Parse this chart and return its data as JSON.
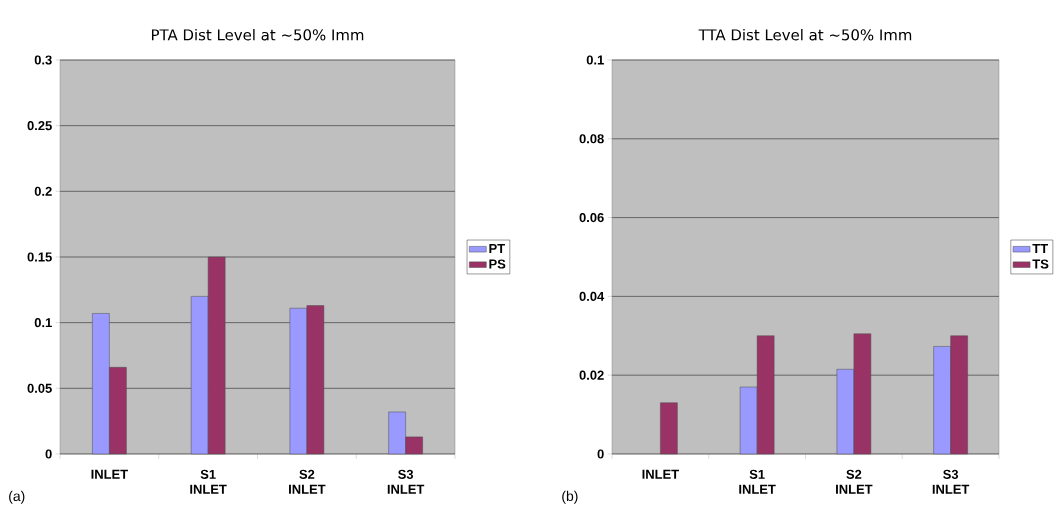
{
  "chart_data": [
    {
      "type": "bar",
      "title": "PTA Dist Level at ~50% Imm",
      "categories": [
        "INLET",
        "S1 INLET",
        "S2 INLET",
        "S3 INLET"
      ],
      "series": [
        {
          "name": "PT",
          "color": "#9999ff",
          "values": [
            0.107,
            0.12,
            0.111,
            0.032
          ]
        },
        {
          "name": "PS",
          "color": "#993366",
          "values": [
            0.066,
            0.15,
            0.113,
            0.013
          ]
        }
      ],
      "ylim": [
        0,
        0.3
      ],
      "yticks": [
        0,
        0.05,
        0.1,
        0.15,
        0.2,
        0.25,
        0.3
      ],
      "grid": "y",
      "legend": "right",
      "annotations": [
        "(a)"
      ]
    },
    {
      "type": "bar",
      "title": "TTA Dist Level at ~50% Imm",
      "categories": [
        "INLET",
        "S1 INLET",
        "S2 INLET",
        "S3 INLET"
      ],
      "series": [
        {
          "name": "TT",
          "color": "#9999ff",
          "values": [
            null,
            0.017,
            0.0215,
            0.0273
          ]
        },
        {
          "name": "TS",
          "color": "#993366",
          "values": [
            0.013,
            0.03,
            0.0305,
            0.03
          ]
        }
      ],
      "ylim": [
        0,
        0.1
      ],
      "yticks": [
        0,
        0.02,
        0.04,
        0.06,
        0.08,
        0.1
      ],
      "grid": "y",
      "legend": "right",
      "annotations": [
        "(b)"
      ]
    }
  ]
}
